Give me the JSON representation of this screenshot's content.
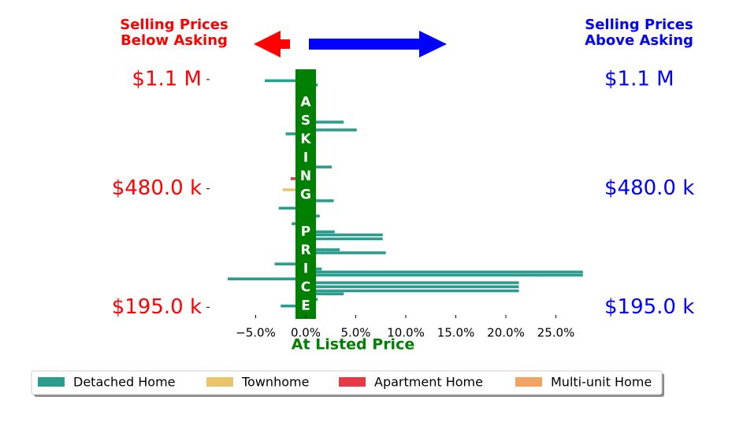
{
  "chart_data": {
    "type": "barh",
    "annotations": {
      "left": "Selling Prices\nBelow Asking",
      "right": "Selling Prices\nAbove Asking",
      "band": "ASKING PRICE"
    },
    "xlabel": "At Listed Price",
    "xlim": [
      -8,
      28
    ],
    "xticks": [
      {
        "value": -5,
        "label": "−5.0%"
      },
      {
        "value": 0,
        "label": "0.0%"
      },
      {
        "value": 5,
        "label": "5.0%"
      },
      {
        "value": 10,
        "label": "10.0%"
      },
      {
        "value": 15,
        "label": "15.0%"
      },
      {
        "value": 20,
        "label": "20.0%"
      },
      {
        "value": 25,
        "label": "25.0%"
      }
    ],
    "ylim": [
      184000,
      1140000
    ],
    "ylog": true,
    "yticks": [
      {
        "value": 1100000,
        "label": "$1.1 M"
      },
      {
        "value": 480000,
        "label": "$480.0 k"
      },
      {
        "value": 195000,
        "label": "$195.0 k"
      }
    ],
    "legend": "bottom",
    "series": [
      {
        "name": "Detached Home",
        "color": "#2a9d8f",
        "y": [
          1090000,
          1055000,
          1012000,
          981000,
          953000,
          796000,
          750000,
          728000,
          566000,
          438000,
          414000,
          390000,
          368000,
          346000,
          338000,
          328000,
          302000,
          295000,
          271000,
          261000,
          255000,
          249000,
          242000,
          235000,
          228000,
          221000,
          216000,
          207000,
          197000
        ],
        "values": [
          -4.1,
          1.2,
          1.0,
          1.0,
          1.0,
          3.8,
          5.1,
          -2.0,
          2.6,
          2.8,
          -2.7,
          1.4,
          -1.4,
          2.9,
          7.7,
          7.7,
          3.4,
          8.0,
          -3.1,
          1.6,
          27.7,
          27.7,
          -7.8,
          21.3,
          21.3,
          21.3,
          3.8,
          1.2,
          -2.5
        ]
      },
      {
        "name": "Townhome",
        "color": "#e9c46a",
        "y": [
          476000
        ],
        "values": [
          -2.3
        ]
      },
      {
        "name": "Apartment Home",
        "color": "#e63946",
        "y": [
          518000
        ],
        "values": [
          -1.5
        ]
      },
      {
        "name": "Multi-unit Home",
        "color": "#f4a261",
        "y": [
          493000
        ],
        "values": [
          0.8
        ]
      }
    ]
  }
}
